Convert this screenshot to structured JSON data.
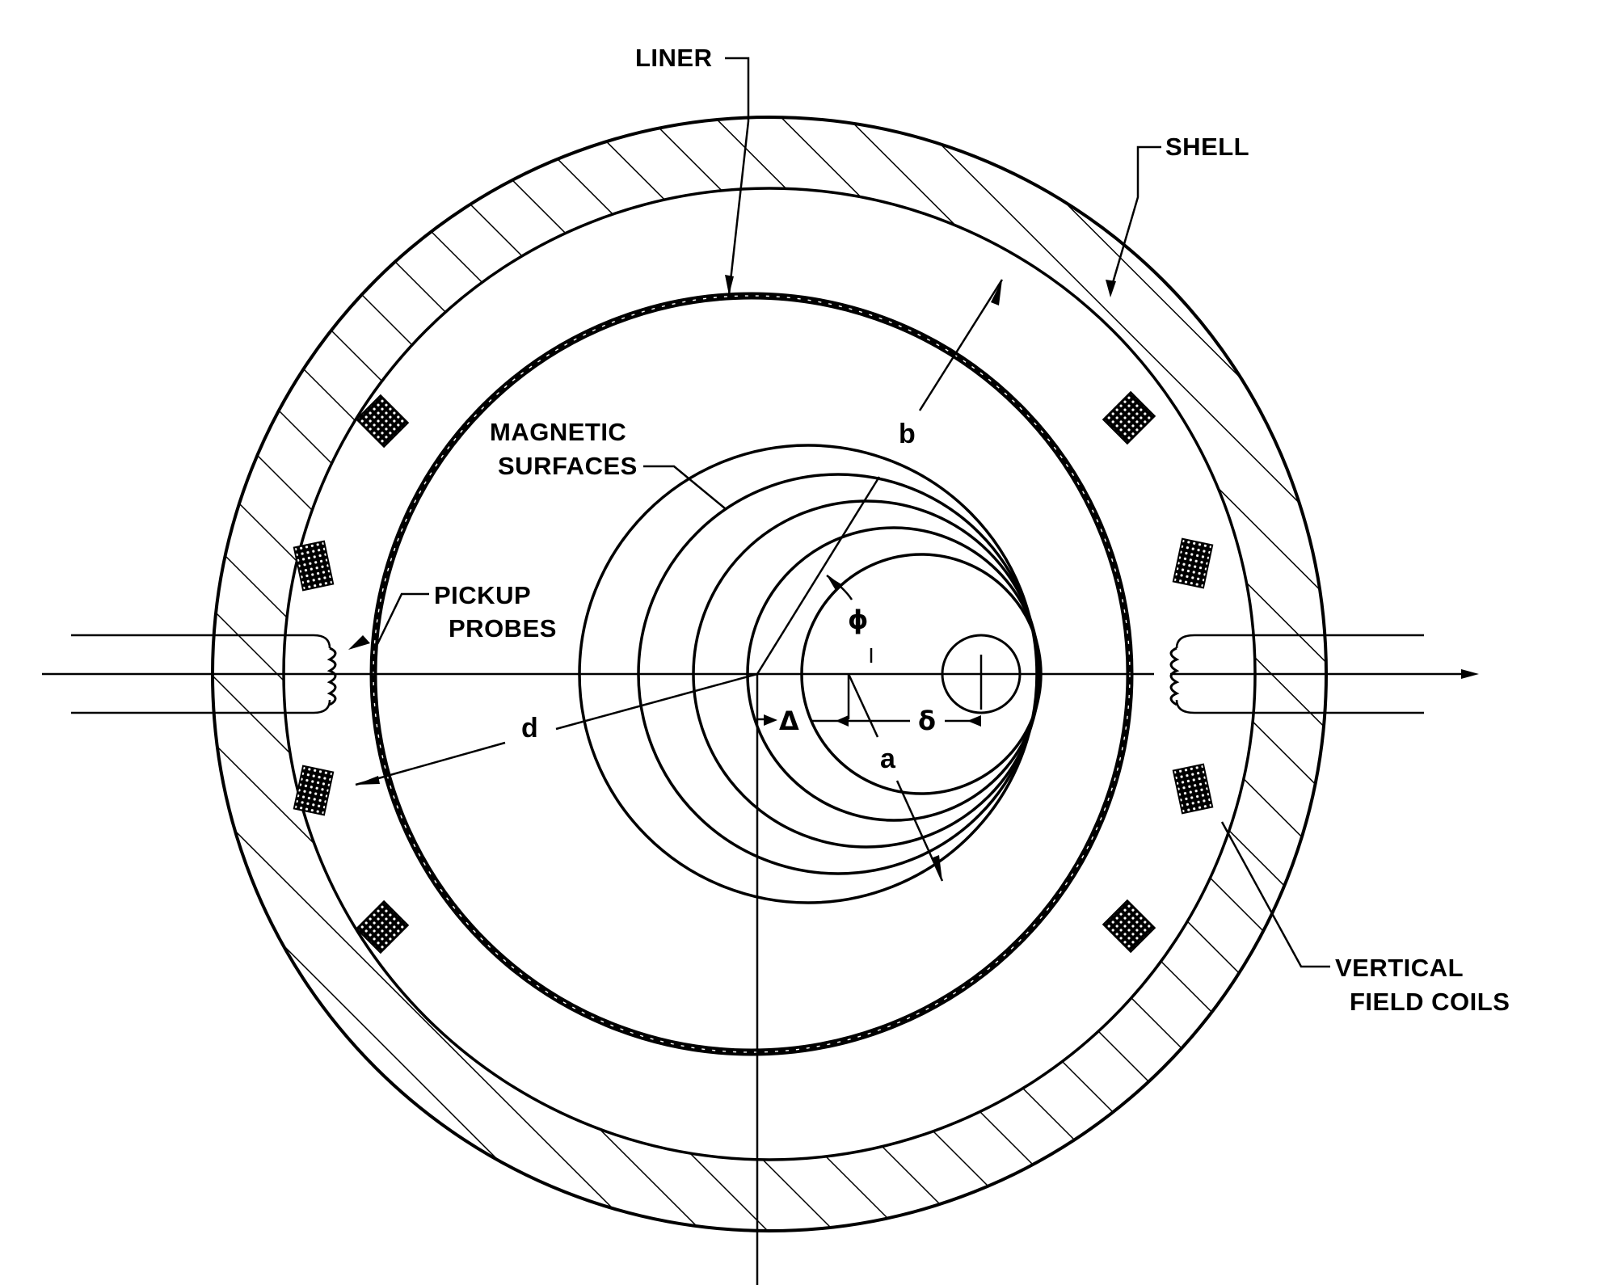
{
  "labels": {
    "liner": "LINER",
    "shell": "SHELL",
    "magnetic_surfaces_line1": "MAGNETIC",
    "magnetic_surfaces_line2": "SURFACES",
    "pickup_probes_line1": "PICKUP",
    "pickup_probes_line2": "PROBES",
    "vertical_field_coils_line1": "VERTICAL",
    "vertical_field_coils_line2": "FIELD COILS"
  },
  "symbols": {
    "b": "b",
    "d": "d",
    "a": "a",
    "phi": "ϕ",
    "delta_upper": "Δ",
    "delta_lower": "δ"
  },
  "colors": {
    "ink": "#000000",
    "paper": "#ffffff"
  }
}
